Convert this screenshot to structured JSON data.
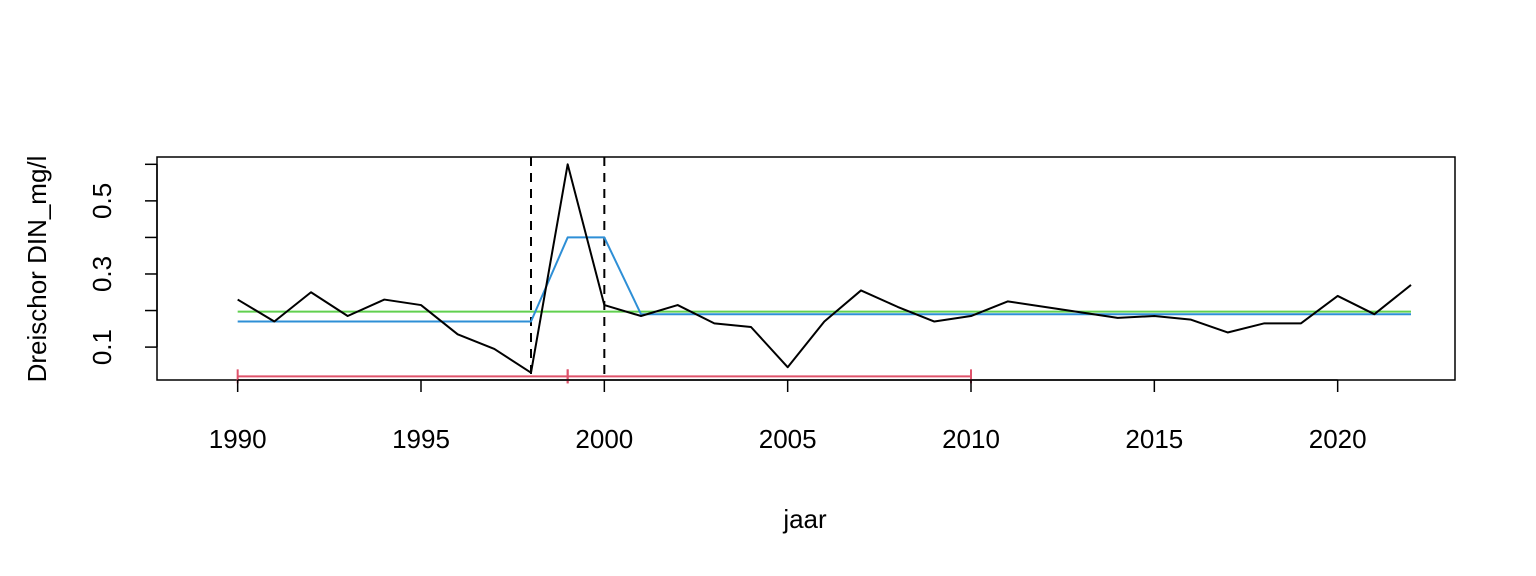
{
  "chart_data": {
    "type": "line",
    "title": "",
    "xlabel": "jaar",
    "ylabel": "Dreischor DIN_mg/l",
    "xlim": [
      1987.8,
      2023.2
    ],
    "ylim": [
      0.01,
      0.62
    ],
    "x_ticks": [
      1990,
      1995,
      2000,
      2005,
      2010,
      2015,
      2020
    ],
    "y_ticks": [
      0.1,
      0.3,
      0.5
    ],
    "grid": false,
    "legend": "none",
    "x": [
      1990,
      1991,
      1992,
      1993,
      1994,
      1995,
      1996,
      1997,
      1998,
      1999,
      2000,
      2001,
      2002,
      2003,
      2004,
      2005,
      2006,
      2007,
      2008,
      2009,
      2010,
      2011,
      2012,
      2013,
      2014,
      2015,
      2016,
      2017,
      2018,
      2019,
      2020,
      2021,
      2022
    ],
    "series": [
      {
        "color": "#000000",
        "dash": "solid",
        "values": [
          0.23,
          0.17,
          0.25,
          0.185,
          0.23,
          0.215,
          0.135,
          0.095,
          0.03,
          0.6,
          0.215,
          0.185,
          0.215,
          0.165,
          0.155,
          0.045,
          0.17,
          0.255,
          0.21,
          0.17,
          0.185,
          0.225,
          0.21,
          0.195,
          0.18,
          0.185,
          0.175,
          0.14,
          0.165,
          0.165,
          0.24,
          0.19,
          0.27
        ]
      },
      {
        "color": "#2e8fd6",
        "dash": "solid",
        "values": [
          0.17,
          0.17,
          0.17,
          0.17,
          0.17,
          0.17,
          0.17,
          0.17,
          0.17,
          0.4,
          0.4,
          0.19,
          0.19,
          0.19,
          0.19,
          0.19,
          0.19,
          0.19,
          0.19,
          0.19,
          0.19,
          0.19,
          0.19,
          0.19,
          0.19,
          0.19,
          0.19,
          0.19,
          0.19,
          0.19,
          0.19,
          0.19,
          0.19
        ]
      },
      {
        "color": "#61d04f",
        "dash": "solid",
        "x": [
          1990,
          2022
        ],
        "values": [
          0.197,
          0.197
        ]
      }
    ],
    "vlines": [
      {
        "x": 1998,
        "color": "#000000",
        "dash": "dashed"
      },
      {
        "x": 2000,
        "color": "#000000",
        "dash": "dashed"
      }
    ],
    "intervals": [
      {
        "x_start": 1990,
        "x_end": 1999,
        "y": 0.02,
        "color": "#df536b"
      },
      {
        "x_start": 1999,
        "x_end": 2010,
        "y": 0.02,
        "color": "#df536b"
      }
    ]
  }
}
